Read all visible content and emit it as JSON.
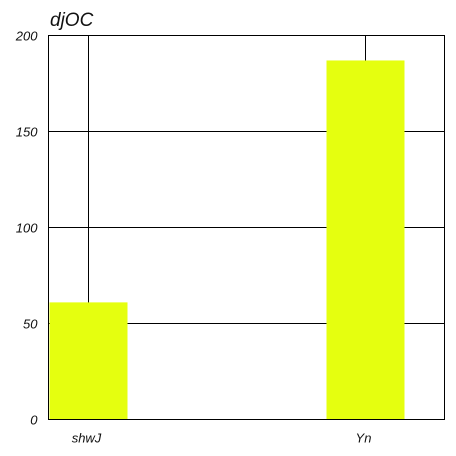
{
  "chart_data": {
    "type": "bar",
    "title": "djOC",
    "categories": [
      "shwJ",
      "Yn"
    ],
    "values": [
      61,
      187
    ],
    "ylim": [
      0,
      200
    ],
    "yticks": [
      0,
      50,
      100,
      150,
      200
    ],
    "grid": true,
    "bar_color": "#e5ff0f",
    "grid_color": "#000000"
  }
}
